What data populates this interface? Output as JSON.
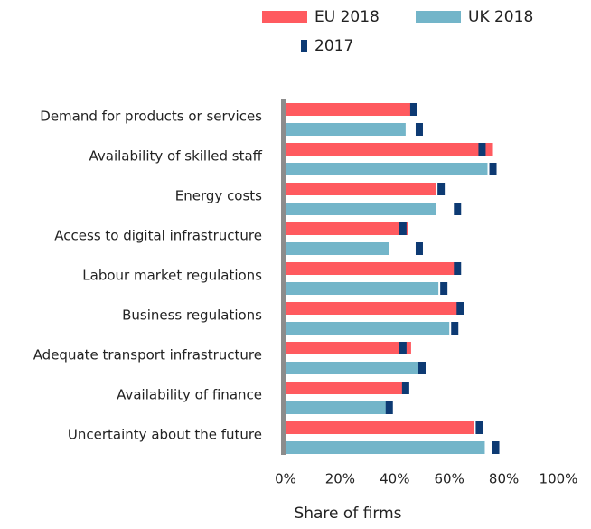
{
  "chart_data": {
    "type": "bar",
    "orientation": "horizontal",
    "x_label": "Share of firms",
    "categories": [
      "Demand for products or services",
      "Availability of skilled staff",
      "Energy costs",
      "Access to digital infrastructure",
      "Labour market regulations",
      "Business regulations",
      "Adequate transport infrastructure",
      "Availability of finance",
      "Uncertainty about the future"
    ],
    "series": [
      {
        "name": "EU 2018",
        "color": "#ff5a5f",
        "values": [
          46,
          76,
          55,
          45,
          62,
          63,
          46,
          43,
          69
        ]
      },
      {
        "name": "UK 2018",
        "color": "#73b5c9",
        "values": [
          44,
          74,
          55,
          38,
          56,
          60,
          49,
          37,
          73
        ]
      },
      {
        "name": "2017",
        "color": "#0d3a73",
        "values": [
          [
            47,
            49
          ],
          [
            72,
            76
          ],
          [
            57,
            63
          ],
          [
            43,
            49
          ],
          [
            63,
            58
          ],
          [
            64,
            62
          ],
          [
            43,
            50
          ],
          [
            44,
            38
          ],
          [
            71,
            77
          ]
        ]
      }
    ],
    "xlim": [
      0,
      100
    ],
    "xticks": [
      {
        "value": 0,
        "label": "0%"
      },
      {
        "value": 20,
        "label": "20%"
      },
      {
        "value": 40,
        "label": "40%"
      },
      {
        "value": 60,
        "label": "60%"
      },
      {
        "value": 80,
        "label": "80%"
      },
      {
        "value": 100,
        "label": "100%"
      }
    ],
    "legend": "top"
  }
}
